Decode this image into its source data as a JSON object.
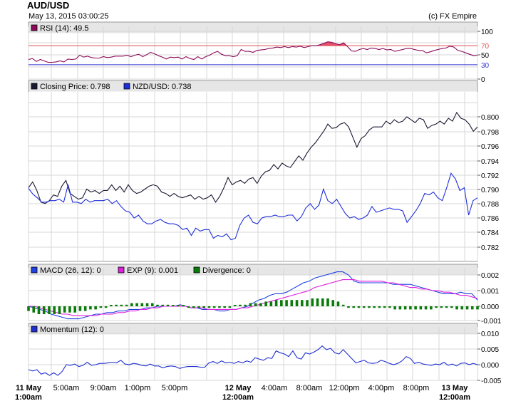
{
  "header": {
    "title": "AUD/USD",
    "timestamp": "May 13, 2015 03:00:25",
    "copyright": "(c) FX Empire"
  },
  "colors": {
    "background": "#ffffff",
    "grid": "#d7d7d7",
    "legend_bar": "#e6e6e6",
    "rsi_line": "#8b0a5b",
    "rsi_fill": "#e0405a",
    "rsi_upper": "#e05050",
    "rsi_lower": "#3030d0",
    "closing": "#1a1a33",
    "nzd": "#1f2fd8",
    "macd": "#2040e0",
    "exp": "#e020e0",
    "divergence": "#0a7a0a",
    "momentum": "#2030d0"
  },
  "x_axis": {
    "labels": [
      {
        "line1": "11 May",
        "line2": "1:00am",
        "bold": true
      },
      {
        "line1": "5:00am",
        "line2": "",
        "bold": false
      },
      {
        "line1": "9:00am",
        "line2": "",
        "bold": false
      },
      {
        "line1": "1:00pm",
        "line2": "",
        "bold": false
      },
      {
        "line1": "5:00pm",
        "line2": "",
        "bold": false
      },
      {
        "line1": "12 May",
        "line2": "12:00am",
        "bold": true
      },
      {
        "line1": "4:00am",
        "line2": "",
        "bold": false
      },
      {
        "line1": "8:00am",
        "line2": "",
        "bold": false
      },
      {
        "line1": "12:00pm",
        "line2": "",
        "bold": false
      },
      {
        "line1": "4:00pm",
        "line2": "",
        "bold": false
      },
      {
        "line1": "8:00pm",
        "line2": "",
        "bold": false
      },
      {
        "line1": "13 May",
        "line2": "12:00am",
        "bold": true
      }
    ]
  },
  "chart_data": [
    {
      "type": "line",
      "panel": "rsi",
      "legend": [
        {
          "label": "RSI (14): 49.5",
          "color": "#8b0a5b"
        }
      ],
      "ylim": [
        0,
        100
      ],
      "yticks": [
        "100",
        "50",
        "0"
      ],
      "levels": [
        {
          "value": 70,
          "label": "70"
        },
        {
          "value": 30,
          "label": "30"
        }
      ],
      "series": [
        {
          "name": "RSI (14)",
          "values": [
            41,
            43,
            37,
            41,
            38,
            35,
            35,
            36,
            38,
            36,
            42,
            41,
            42,
            50,
            46,
            48,
            45,
            44,
            44,
            47,
            45,
            46,
            48,
            48,
            48,
            50,
            47,
            50,
            52,
            47,
            51,
            56,
            53,
            49,
            46,
            42,
            46,
            45,
            46,
            42,
            47,
            43,
            41,
            47,
            42,
            47,
            50,
            55,
            58,
            52,
            49,
            49,
            47,
            49,
            62,
            58,
            58,
            56,
            60,
            61,
            62,
            64,
            65,
            67,
            66,
            68,
            66,
            68,
            67,
            69,
            66,
            68,
            70,
            70,
            72,
            75,
            78,
            77,
            74,
            72,
            76,
            68,
            59,
            58,
            62,
            64,
            62,
            65,
            64,
            62,
            64,
            61,
            62,
            58,
            60,
            62,
            64,
            64,
            62,
            60,
            60,
            55,
            57,
            60,
            62,
            64,
            65,
            69,
            67,
            60,
            58,
            55,
            52,
            49,
            50
          ]
        }
      ]
    },
    {
      "type": "line",
      "panel": "price",
      "legend": [
        {
          "label": "Closing Price: 0.798",
          "color": "#1a1a33"
        },
        {
          "label": "NZD/USD: 0.738",
          "color": "#1f2fd8"
        }
      ],
      "ylim": [
        0.78,
        0.802
      ],
      "yticks": [
        "0.800",
        "0.798",
        "0.796",
        "0.794",
        "0.792",
        "0.790",
        "0.788",
        "0.786",
        "0.784",
        "0.782"
      ],
      "series": [
        {
          "name": "Closing Price",
          "values": [
            0.7902,
            0.791,
            0.7898,
            0.7882,
            0.788,
            0.7884,
            0.7892,
            0.789,
            0.7904,
            0.7912,
            0.7894,
            0.789,
            0.7886,
            0.7888,
            0.79,
            0.7896,
            0.7898,
            0.7894,
            0.7898,
            0.7898,
            0.7906,
            0.7898,
            0.7904,
            0.7896,
            0.7906,
            0.7898,
            0.7894,
            0.7896,
            0.79,
            0.7904,
            0.7906,
            0.7904,
            0.7896,
            0.7894,
            0.789,
            0.7894,
            0.789,
            0.7888,
            0.789,
            0.7892,
            0.7886,
            0.789,
            0.7886,
            0.7888,
            0.7892,
            0.7882,
            0.789,
            0.7902,
            0.7916,
            0.7906,
            0.791,
            0.7912,
            0.7908,
            0.7914,
            0.7916,
            0.7908,
            0.7918,
            0.7924,
            0.7926,
            0.7934,
            0.7928,
            0.7936,
            0.7932,
            0.793,
            0.7938,
            0.7946,
            0.794,
            0.795,
            0.7958,
            0.7964,
            0.7972,
            0.798,
            0.799,
            0.7984,
            0.7985,
            0.799,
            0.7992,
            0.7986,
            0.7972,
            0.7958,
            0.797,
            0.7974,
            0.7982,
            0.7986,
            0.7986,
            0.7986,
            0.7994,
            0.799,
            0.7996,
            0.7992,
            0.7994,
            0.8,
            0.7996,
            0.7992,
            0.7998,
            0.7996,
            0.7984,
            0.7988,
            0.799,
            0.7994,
            0.799,
            0.7998,
            0.7994,
            0.8006,
            0.7998,
            0.7996,
            0.799,
            0.798,
            0.7986
          ]
        },
        {
          "name": "NZD/USD",
          "values": [
            0.7901,
            0.7893,
            0.7888,
            0.7882,
            0.7882,
            0.7884,
            0.7884,
            0.7886,
            0.7882,
            0.7906,
            0.7882,
            0.7882,
            0.788,
            0.7886,
            0.7882,
            0.7884,
            0.7884,
            0.7884,
            0.7886,
            0.788,
            0.7884,
            0.7876,
            0.787,
            0.7868,
            0.786,
            0.7864,
            0.7856,
            0.7852,
            0.7852,
            0.7856,
            0.7858,
            0.7854,
            0.7852,
            0.7852,
            0.785,
            0.7844,
            0.7846,
            0.7836,
            0.7846,
            0.7842,
            0.7844,
            0.7844,
            0.7832,
            0.7836,
            0.7834,
            0.7838,
            0.783,
            0.7832,
            0.785,
            0.786,
            0.7864,
            0.7854,
            0.7852,
            0.786,
            0.7862,
            0.7862,
            0.7864,
            0.7862,
            0.7862,
            0.7864,
            0.7864,
            0.7856,
            0.7862,
            0.7874,
            0.788,
            0.7872,
            0.7878,
            0.79,
            0.7884,
            0.788,
            0.7886,
            0.7876,
            0.7866,
            0.786,
            0.7862,
            0.7858,
            0.786,
            0.7864,
            0.7876,
            0.7868,
            0.787,
            0.7872,
            0.7874,
            0.7872,
            0.7872,
            0.787,
            0.7854,
            0.7862,
            0.787,
            0.788,
            0.7894,
            0.7892,
            0.7896,
            0.7888,
            0.7884,
            0.7902,
            0.7922,
            0.7914,
            0.7898,
            0.7902,
            0.7864,
            0.7884,
            0.7888
          ]
        }
      ]
    },
    {
      "type": "line",
      "panel": "macd",
      "legend": [
        {
          "label": "MACD (26, 12): 0",
          "color": "#2040e0"
        },
        {
          "label": "EXP (9): 0.001",
          "color": "#e020e0"
        },
        {
          "label": "Divergence: 0",
          "color": "#0a7a0a"
        }
      ],
      "ylim": [
        -0.0015,
        0.0027
      ],
      "yticks": [
        "0.002",
        "0.001",
        "0.000",
        "-0.001"
      ],
      "series": [
        {
          "name": "MACD (26, 12)",
          "values": [
            0.0,
            -0.0001,
            -0.0002,
            -0.0003,
            -0.0005,
            -0.0006,
            -0.0007,
            -0.0008,
            -0.0008,
            -0.0008,
            -0.0007,
            -0.0006,
            -0.0005,
            -0.0005,
            -0.0004,
            -0.0004,
            -0.0003,
            -0.0003,
            -0.0002,
            -0.0002,
            -0.0002,
            -0.0001,
            -0.0001,
            0.0,
            0.0,
            0.0,
            0.0,
            0.0001,
            0.0,
            -0.0001,
            -0.0001,
            -0.0002,
            -0.0002,
            -0.0002,
            -0.0003,
            -0.0003,
            -0.0002,
            -0.0002,
            -0.0001,
            0.0,
            0.0002,
            0.0004,
            0.0005,
            0.0007,
            0.0008,
            0.0008,
            0.0009,
            0.0011,
            0.0013,
            0.0015,
            0.0016,
            0.0018,
            0.0019,
            0.002,
            0.0021,
            0.0022,
            0.0022,
            0.002,
            0.0016,
            0.0015,
            0.0015,
            0.0015,
            0.0015,
            0.0015,
            0.0015,
            0.0014,
            0.0014,
            0.0014,
            0.0014,
            0.0013,
            0.0012,
            0.0011,
            0.001,
            0.0009,
            0.0008,
            0.0008,
            0.0008,
            0.0009,
            0.0008,
            0.0008,
            0.0004
          ]
        },
        {
          "name": "EXP (9)",
          "values": [
            0.0,
            0.0,
            -0.0001,
            -0.0002,
            -0.0003,
            -0.0004,
            -0.0005,
            -0.0005,
            -0.0006,
            -0.0006,
            -0.0006,
            -0.0006,
            -0.0006,
            -0.0005,
            -0.0005,
            -0.0005,
            -0.0004,
            -0.0004,
            -0.0003,
            -0.0003,
            -0.0002,
            -0.0002,
            -0.0001,
            -0.0001,
            0.0,
            0.0,
            0.0,
            0.0,
            0.0,
            -0.0001,
            -0.0001,
            -0.0001,
            -0.0002,
            -0.0002,
            -0.0002,
            -0.0002,
            -0.0002,
            -0.0002,
            -0.0001,
            -0.0001,
            0.0,
            0.0001,
            0.0002,
            0.0003,
            0.0004,
            0.0005,
            0.0006,
            0.0007,
            0.0008,
            0.0009,
            0.001,
            0.0012,
            0.0013,
            0.0014,
            0.0015,
            0.0016,
            0.0017,
            0.0017,
            0.0017,
            0.0016,
            0.0016,
            0.0016,
            0.0016,
            0.0016,
            0.0015,
            0.0015,
            0.0014,
            0.0013,
            0.0012,
            0.0012,
            0.0011,
            0.0011,
            0.001,
            0.001,
            0.0009,
            0.0009,
            0.0008,
            0.0007,
            0.0007,
            0.0006,
            0.0005
          ]
        },
        {
          "name": "Divergence",
          "type": "bar",
          "values": [
            -0.0003,
            -0.0004,
            -0.0005,
            -0.0005,
            -0.0005,
            -0.0005,
            -0.0005,
            -0.0004,
            -0.0004,
            -0.0004,
            -0.0003,
            -0.0003,
            -0.0002,
            -0.0002,
            -0.0001,
            -0.0001,
            0.0,
            0.0001,
            0.0001,
            0.0001,
            0.0002,
            0.0002,
            0.0002,
            0.0002,
            0.0002,
            0.0001,
            0.0001,
            0.0001,
            0.0,
            0.0,
            0.0,
            -0.0001,
            -0.0001,
            -0.0001,
            -0.0001,
            -0.0001,
            -0.0001,
            -0.0001,
            -0.0001,
            -0.0001,
            0.0,
            0.0001,
            0.0001,
            0.0002,
            0.0002,
            0.0002,
            0.0003,
            0.0003,
            0.0004,
            0.0004,
            0.0004,
            0.0004,
            0.0004,
            0.0004,
            0.0004,
            0.0005,
            0.0005,
            0.0005,
            0.0005,
            0.0004,
            0.0003,
            0.0001,
            -0.0001,
            -0.0001,
            -0.0001,
            -0.0001,
            -0.0001,
            -0.0001,
            -0.0001,
            -0.0001,
            -0.0001,
            -0.0002,
            -0.0002,
            -0.0002,
            -0.0002,
            -0.0002,
            -0.0002,
            -0.0002,
            -0.0002,
            -0.0001,
            -0.0001,
            -0.0001,
            -0.0001,
            -0.0002,
            -0.0002,
            -0.0002,
            -0.0002,
            -0.0002
          ]
        }
      ]
    },
    {
      "type": "line",
      "panel": "momentum",
      "legend": [
        {
          "label": "Momentum (12): 0",
          "color": "#2030d0"
        }
      ],
      "ylim": [
        -0.0065,
        0.011
      ],
      "yticks": [
        "0.010",
        "0.005",
        "0.000",
        "-0.005"
      ],
      "series": [
        {
          "name": "Momentum (12)",
          "values": [
            -0.0016,
            -0.002,
            -0.0016,
            -0.003,
            -0.0026,
            -0.0034,
            -0.0026,
            -0.0034,
            -0.0022,
            0.0,
            -0.0002,
            0.0002,
            -0.0006,
            -0.0002,
            0.0008,
            -0.0002,
            0.0,
            0.0004,
            0.0004,
            0.0006,
            0.0008,
            0.0006,
            0.0014,
            0.0002,
            0.0,
            0.0004,
            0.0002,
            -0.0002,
            -0.0004,
            0.0002,
            -0.0004,
            -0.0004,
            -0.001,
            -0.0006,
            -0.0004,
            -0.0006,
            -0.0012,
            -0.0008,
            -0.0006,
            -0.0006,
            -0.0006,
            -0.0008,
            -0.0008,
            0.0006,
            0.001,
            0.0004,
            0.0012,
            0.0006,
            0.0008,
            0.0004,
            0.001,
            0.0006,
            0.0012,
            0.0008,
            0.0022,
            0.0018,
            0.0014,
            0.0022,
            0.002,
            0.0044,
            0.0038,
            0.0034,
            0.0026,
            0.0044,
            0.0022,
            0.0018,
            0.0038,
            0.0034,
            0.004,
            0.0048,
            0.006,
            0.0048,
            0.0052,
            0.0038,
            0.0034,
            0.0048,
            0.0034,
            0.002,
            0.0006,
            0.001,
            0.0014,
            0.0006,
            0.0004,
            0.0006,
            0.0014,
            0.001,
            0.0004,
            0.0,
            0.0004,
            0.0012,
            0.0026,
            0.002,
            0.0004,
            0.0008,
            0.0002,
            0.0,
            -0.0002,
            0.0002,
            0.0,
            0.0008,
            -0.0002,
            0.0002,
            -0.0004,
            0.0004,
            0.0006,
            0.0,
            0.0004,
            0.0
          ]
        }
      ]
    }
  ]
}
